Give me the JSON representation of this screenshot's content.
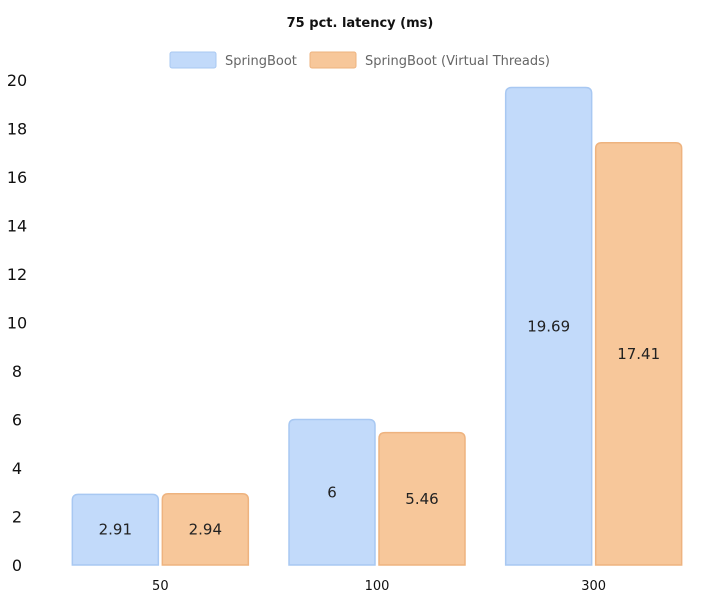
{
  "chart_data": {
    "type": "bar",
    "title": "75 pct. latency (ms)",
    "categories": [
      "50",
      "100",
      "300"
    ],
    "series": [
      {
        "name": "SpringBoot",
        "values": [
          2.91,
          6,
          19.69
        ],
        "color": "#c2dafa",
        "border": "#a8c8f2"
      },
      {
        "name": "SpringBoot (Virtual Threads)",
        "values": [
          2.94,
          5.46,
          17.41
        ],
        "color": "#f7c79a",
        "border": "#eeb37f"
      }
    ],
    "yticks": [
      0,
      2,
      4,
      6,
      8,
      10,
      12,
      14,
      16,
      18,
      20
    ],
    "ylim": [
      0,
      20
    ],
    "xlabel": "",
    "ylabel": "",
    "grid": false,
    "legend": "top-center",
    "show_data_labels": true
  }
}
